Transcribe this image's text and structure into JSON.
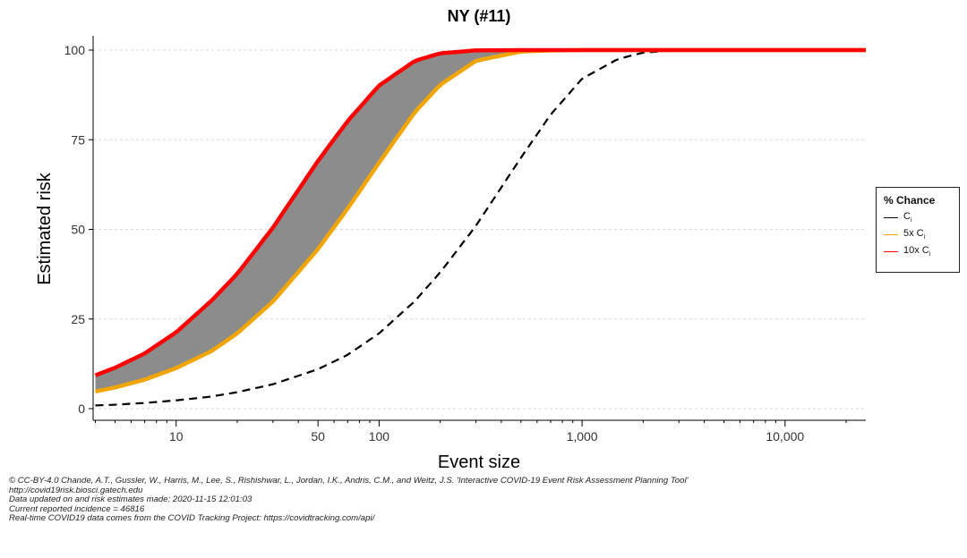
{
  "chart_data": {
    "type": "line",
    "title": "NY (#11)",
    "xlabel": "Event size",
    "ylabel": "Estimated risk",
    "xscale": "log10",
    "xlim": [
      3.9,
      25000
    ],
    "ylim": [
      0,
      100
    ],
    "x_ticks": [
      {
        "value": 10,
        "label": "10"
      },
      {
        "value": 50,
        "label": "50"
      },
      {
        "value": 100,
        "label": "100"
      },
      {
        "value": 1000,
        "label": "1,000"
      },
      {
        "value": 10000,
        "label": "10,000"
      }
    ],
    "y_ticks": [
      {
        "value": 0,
        "label": "0"
      },
      {
        "value": 25,
        "label": "25"
      },
      {
        "value": 50,
        "label": "50"
      },
      {
        "value": 75,
        "label": "75"
      },
      {
        "value": 100,
        "label": "100"
      }
    ],
    "shaded_band": {
      "between": [
        "5x Ci",
        "10x Ci"
      ],
      "color": "#8c8c8c"
    },
    "series": [
      {
        "name": "Ci",
        "color": "#000000",
        "style": "dashed",
        "x": [
          4,
          5,
          7,
          10,
          15,
          20,
          30,
          50,
          70,
          100,
          150,
          200,
          300,
          500,
          700,
          1000,
          1500,
          2000,
          3000,
          5000,
          10000,
          25000
        ],
        "y": [
          0.9,
          1.1,
          1.6,
          2.3,
          3.4,
          4.6,
          6.8,
          11,
          15,
          21,
          30,
          38,
          51,
          70,
          82,
          92,
          97.5,
          99.3,
          100,
          100,
          100,
          100
        ]
      },
      {
        "name": "5x Ci",
        "color": "#f0a500",
        "style": "solid",
        "x": [
          4,
          5,
          7,
          10,
          15,
          20,
          30,
          50,
          70,
          100,
          150,
          200,
          300,
          500,
          700,
          1000,
          3000,
          10000,
          25000
        ],
        "y": [
          4.8,
          5.9,
          8.1,
          11.3,
          16.1,
          21,
          29.9,
          44.5,
          55.8,
          68.6,
          82.7,
          90.3,
          97,
          99.6,
          99.9,
          100,
          100,
          100,
          100
        ]
      },
      {
        "name": "10x Ci",
        "color": "#ff0000",
        "style": "solid",
        "x": [
          4,
          5,
          7,
          10,
          15,
          20,
          30,
          50,
          70,
          100,
          150,
          200,
          300,
          500,
          1000,
          3000,
          10000,
          25000
        ],
        "y": [
          9.3,
          11.4,
          15.4,
          21.3,
          30.2,
          37.6,
          50.5,
          69.1,
          80.2,
          90.1,
          97,
          99.1,
          99.9,
          100,
          100,
          100,
          100,
          100
        ]
      }
    ],
    "legend": {
      "title": "% Chance",
      "position": "right",
      "items": [
        {
          "prefix": "",
          "sub": "i",
          "base": "C",
          "color": "#000000"
        },
        {
          "prefix": "5x ",
          "sub": "i",
          "base": "C",
          "color": "#f0a500"
        },
        {
          "prefix": "10x ",
          "sub": "i",
          "base": "C",
          "color": "#ff0000"
        }
      ]
    }
  },
  "caption": {
    "line1": "© CC-BY-4.0   Chande, A.T., Gussler, W., Harris, M., Lee, S., Rishishwar, L., Jordan, I.K., Andris, C.M., and Weitz, J.S. 'Interactive COVID-19 Event Risk Assessment Planning Tool'",
    "line2": "http://covid19risk.biosci.gatech.edu",
    "line3": "Data updated on and risk estimates made:  2020-11-15 12:01:03",
    "line4": "Current reported incidence = 46816",
    "line5": "Real-time COVID19 data comes from the COVID Tracking Project: https://covidtracking.com/api/"
  }
}
